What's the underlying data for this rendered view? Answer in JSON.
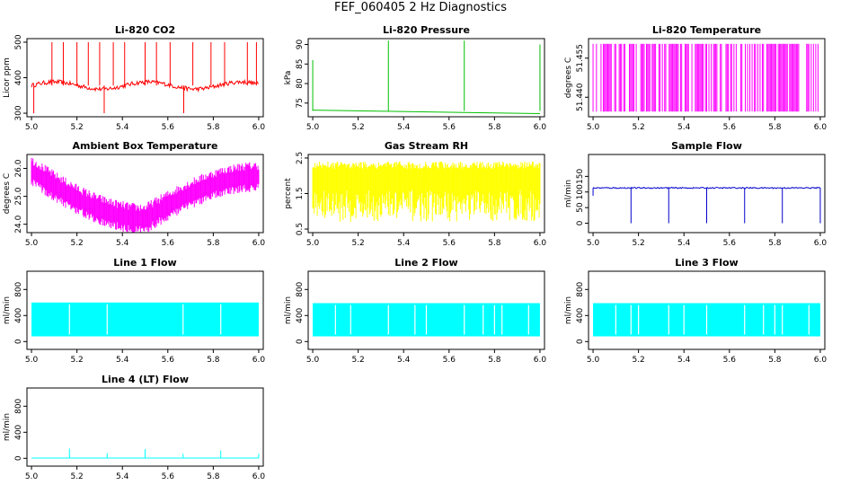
{
  "page": {
    "title": "FEF_060405  2 Hz Diagnostics"
  },
  "chart_data": [
    {
      "type": "line",
      "title": "Li-820 CO2",
      "ylabel": "Licor ppm",
      "xlim": [
        4.98,
        6.02
      ],
      "xticks": [
        "5.0",
        "5.2",
        "5.4",
        "5.6",
        "5.8",
        "6.0"
      ],
      "ylim": [
        290,
        510
      ],
      "yticks": [
        {
          "v": 300,
          "t": "300"
        },
        {
          "v": 400,
          "t": "400"
        },
        {
          "v": 500,
          "t": "500"
        }
      ],
      "color": "#ff0000",
      "pattern": "co2",
      "series": [
        {
          "base": 378
        }
      ]
    },
    {
      "type": "line",
      "title": "Li-820 Pressure",
      "ylabel": "kPa",
      "xlim": [
        4.98,
        6.02
      ],
      "xticks": [
        "5.0",
        "5.2",
        "5.4",
        "5.6",
        "5.8",
        "6.0"
      ],
      "ylim": [
        71.5,
        91.5
      ],
      "yticks": [
        {
          "v": 75,
          "t": "75"
        },
        {
          "v": 80,
          "t": "80"
        },
        {
          "v": 85,
          "t": "85"
        },
        {
          "v": 90,
          "t": "90"
        }
      ],
      "color": "#00c000",
      "pattern": "pressure",
      "series": [
        {
          "base": 72.5
        }
      ]
    },
    {
      "type": "line",
      "title": "Li-820 Temperature",
      "ylabel": "degrees C",
      "xlim": [
        4.98,
        6.02
      ],
      "xticks": [
        "5.0",
        "5.2",
        "5.4",
        "5.6",
        "5.8",
        "6.0"
      ],
      "ylim": [
        51.4325,
        51.4625
      ],
      "yticks": [
        {
          "v": 51.44,
          "t": "51.440"
        },
        {
          "v": 51.455,
          "t": "51.455"
        }
      ],
      "color": "#ff00ff",
      "pattern": "temp",
      "series": [
        {
          "low": 51.4345,
          "high": 51.4605
        }
      ]
    },
    {
      "type": "line",
      "title": "Ambient Box Temperature",
      "ylabel": "degrees C",
      "xlim": [
        4.98,
        6.02
      ],
      "xticks": [
        "5.0",
        "5.2",
        "5.4",
        "5.6",
        "5.8",
        "6.0"
      ],
      "ylim": [
        23.7,
        26.5
      ],
      "yticks": [
        {
          "v": 24.0,
          "t": "24.0"
        },
        {
          "v": 25.0,
          "t": "25.0"
        },
        {
          "v": 26.0,
          "t": "26.0"
        }
      ],
      "color": "#ff00ff",
      "pattern": "ambient",
      "series": [
        {
          "start": 25.9,
          "min": 24.2,
          "end": 25.7
        }
      ]
    },
    {
      "type": "line",
      "title": "Gas Stream RH",
      "ylabel": "percent",
      "xlim": [
        4.98,
        6.02
      ],
      "xticks": [
        "5.0",
        "5.2",
        "5.4",
        "5.6",
        "5.8",
        "6.0"
      ],
      "ylim": [
        0.4,
        2.6
      ],
      "yticks": [
        {
          "v": 0.5,
          "t": "0.5"
        },
        {
          "v": 1.5,
          "t": "1.5"
        },
        {
          "v": 2.5,
          "t": "2.5"
        }
      ],
      "color": "#ffff00",
      "pattern": "rh",
      "series": [
        {
          "low": 0.7,
          "high": 2.4
        }
      ]
    },
    {
      "type": "line",
      "title": "Sample Flow",
      "ylabel": "ml/min",
      "xlim": [
        4.98,
        6.02
      ],
      "xticks": [
        "5.0",
        "5.2",
        "5.4",
        "5.6",
        "5.8",
        "6.0"
      ],
      "ylim": [
        -30,
        220
      ],
      "yticks": [
        {
          "v": 0,
          "t": "0"
        },
        {
          "v": 50,
          "t": "50"
        },
        {
          "v": 100,
          "t": "100"
        },
        {
          "v": 150,
          "t": "150"
        }
      ],
      "color": "#0000cc",
      "pattern": "sample",
      "series": [
        {
          "base": 113,
          "dips_at": [
            5.167,
            5.333,
            5.5,
            5.667,
            5.833,
            6.0
          ]
        }
      ]
    },
    {
      "type": "area",
      "title": "Line 1 Flow",
      "ylabel": "ml/min",
      "xlim": [
        4.98,
        6.02
      ],
      "xticks": [
        "5.0",
        "5.2",
        "5.4",
        "5.6",
        "5.8",
        "6.0"
      ],
      "ylim": [
        -120,
        1080
      ],
      "yticks": [
        {
          "v": 0,
          "t": "0"
        },
        {
          "v": 400,
          "t": "400"
        },
        {
          "v": 800,
          "t": "800"
        }
      ],
      "color": "#00ffff",
      "pattern": "band",
      "series": [
        {
          "low": 80,
          "high": 600,
          "gaps_at": [
            5.167,
            5.333,
            5.667,
            5.833
          ]
        }
      ]
    },
    {
      "type": "area",
      "title": "Line 2 Flow",
      "ylabel": "ml/min",
      "xlim": [
        4.98,
        6.02
      ],
      "xticks": [
        "5.0",
        "5.2",
        "5.4",
        "5.6",
        "5.8",
        "6.0"
      ],
      "ylim": [
        -120,
        1080
      ],
      "yticks": [
        {
          "v": 0,
          "t": "0"
        },
        {
          "v": 400,
          "t": "400"
        },
        {
          "v": 800,
          "t": "800"
        }
      ],
      "color": "#00ffff",
      "pattern": "band",
      "series": [
        {
          "low": 80,
          "high": 590,
          "gaps_at": [
            5.1,
            5.167,
            5.333,
            5.45,
            5.5,
            5.667,
            5.75,
            5.8,
            5.833,
            5.95
          ]
        }
      ]
    },
    {
      "type": "area",
      "title": "Line 3 Flow",
      "ylabel": "ml/min",
      "xlim": [
        4.98,
        6.02
      ],
      "xticks": [
        "5.0",
        "5.2",
        "5.4",
        "5.6",
        "5.8",
        "6.0"
      ],
      "ylim": [
        -120,
        1080
      ],
      "yticks": [
        {
          "v": 0,
          "t": "0"
        },
        {
          "v": 400,
          "t": "400"
        },
        {
          "v": 800,
          "t": "800"
        }
      ],
      "color": "#00ffff",
      "pattern": "band",
      "series": [
        {
          "low": 80,
          "high": 590,
          "gaps_at": [
            5.1,
            5.167,
            5.2,
            5.333,
            5.4,
            5.5,
            5.667,
            5.75,
            5.8,
            5.833,
            5.95
          ]
        }
      ]
    },
    {
      "type": "line",
      "title": "Line 4 (LT) Flow",
      "ylabel": "ml/min",
      "xlim": [
        4.98,
        6.02
      ],
      "xticks": [
        "5.0",
        "5.2",
        "5.4",
        "5.6",
        "5.8",
        "6.0"
      ],
      "ylim": [
        -120,
        1080
      ],
      "yticks": [
        {
          "v": 0,
          "t": "0"
        },
        {
          "v": 400,
          "t": "400"
        },
        {
          "v": 800,
          "t": "800"
        }
      ],
      "color": "#00ffff",
      "pattern": "lt",
      "series": [
        {
          "base": 5,
          "spikes_at": [
            5.167,
            5.333,
            5.5,
            5.667,
            5.833,
            6.0
          ]
        }
      ]
    }
  ]
}
